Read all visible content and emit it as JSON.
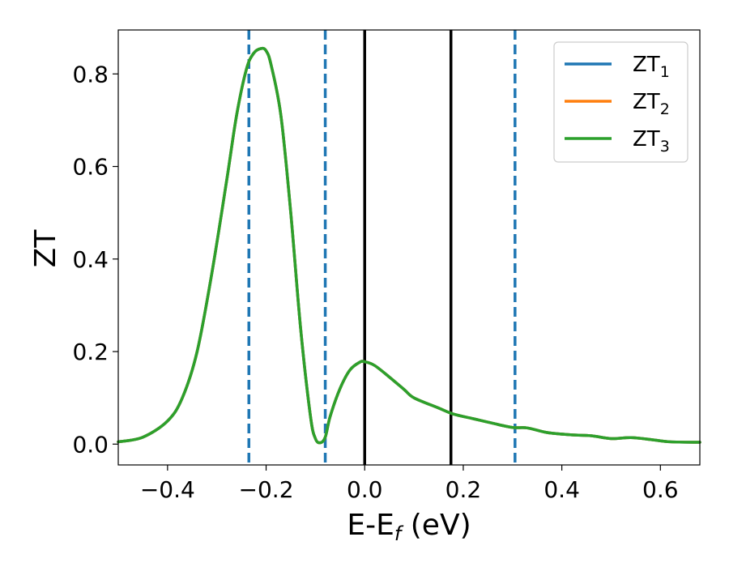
{
  "chart_data": {
    "type": "line",
    "title": "",
    "xlabel": "E-E",
    "xlabel_sub": "f",
    "xlabel_unit": " (eV)",
    "ylabel": "ZT",
    "xlim": [
      -0.5,
      0.68
    ],
    "ylim": [
      -0.045,
      0.895
    ],
    "grid": false,
    "legend_position": "top-right",
    "x_ticks": [
      {
        "value": -0.4,
        "label": "−0.4"
      },
      {
        "value": -0.2,
        "label": "−0.2"
      },
      {
        "value": 0.0,
        "label": "0.0"
      },
      {
        "value": 0.2,
        "label": "0.2"
      },
      {
        "value": 0.4,
        "label": "0.4"
      },
      {
        "value": 0.6,
        "label": "0.6"
      }
    ],
    "y_ticks": [
      {
        "value": 0.0,
        "label": "0.0"
      },
      {
        "value": 0.2,
        "label": "0.2"
      },
      {
        "value": 0.4,
        "label": "0.4"
      },
      {
        "value": 0.6,
        "label": "0.6"
      },
      {
        "value": 0.8,
        "label": "0.8"
      }
    ],
    "x": [
      -0.5,
      -0.45,
      -0.4,
      -0.37,
      -0.34,
      -0.31,
      -0.28,
      -0.26,
      -0.24,
      -0.225,
      -0.21,
      -0.2,
      -0.19,
      -0.17,
      -0.15,
      -0.13,
      -0.11,
      -0.1,
      -0.09,
      -0.08,
      -0.07,
      -0.05,
      -0.03,
      -0.01,
      0.0,
      0.02,
      0.05,
      0.08,
      0.1,
      0.15,
      0.18,
      0.22,
      0.26,
      0.3,
      0.33,
      0.37,
      0.42,
      0.46,
      0.5,
      0.54,
      0.58,
      0.62,
      0.68
    ],
    "series": [
      {
        "name": "ZT",
        "name_sub": "1",
        "color": "#1f77b4",
        "values": [
          0.005,
          0.015,
          0.05,
          0.1,
          0.2,
          0.37,
          0.57,
          0.71,
          0.81,
          0.845,
          0.855,
          0.85,
          0.82,
          0.71,
          0.5,
          0.25,
          0.06,
          0.012,
          0.003,
          0.015,
          0.06,
          0.12,
          0.16,
          0.177,
          0.178,
          0.17,
          0.145,
          0.118,
          0.1,
          0.078,
          0.065,
          0.055,
          0.045,
          0.036,
          0.035,
          0.025,
          0.02,
          0.018,
          0.012,
          0.014,
          0.01,
          0.005,
          0.004
        ]
      },
      {
        "name": "ZT",
        "name_sub": "2",
        "color": "#ff7f0e",
        "values": [
          0.005,
          0.015,
          0.05,
          0.1,
          0.2,
          0.37,
          0.57,
          0.71,
          0.81,
          0.845,
          0.855,
          0.85,
          0.82,
          0.71,
          0.5,
          0.25,
          0.06,
          0.012,
          0.003,
          0.015,
          0.06,
          0.12,
          0.16,
          0.177,
          0.178,
          0.17,
          0.145,
          0.118,
          0.1,
          0.078,
          0.065,
          0.055,
          0.045,
          0.036,
          0.035,
          0.025,
          0.02,
          0.018,
          0.012,
          0.014,
          0.01,
          0.005,
          0.004
        ]
      },
      {
        "name": "ZT",
        "name_sub": "3",
        "color": "#2ca02c",
        "values": [
          0.005,
          0.015,
          0.05,
          0.1,
          0.2,
          0.37,
          0.57,
          0.71,
          0.81,
          0.845,
          0.855,
          0.85,
          0.82,
          0.71,
          0.5,
          0.25,
          0.06,
          0.012,
          0.003,
          0.015,
          0.06,
          0.12,
          0.16,
          0.177,
          0.178,
          0.17,
          0.145,
          0.118,
          0.1,
          0.078,
          0.065,
          0.055,
          0.045,
          0.036,
          0.035,
          0.025,
          0.02,
          0.018,
          0.012,
          0.014,
          0.01,
          0.005,
          0.004
        ]
      }
    ],
    "vertical_lines": [
      {
        "x": -0.235,
        "style": "dashed",
        "color": "#1f77b4"
      },
      {
        "x": -0.08,
        "style": "dashed",
        "color": "#1f77b4"
      },
      {
        "x": 0.0,
        "style": "solid",
        "color": "#000000"
      },
      {
        "x": 0.175,
        "style": "solid",
        "color": "#000000"
      },
      {
        "x": 0.305,
        "style": "dashed",
        "color": "#1f77b4"
      }
    ]
  }
}
